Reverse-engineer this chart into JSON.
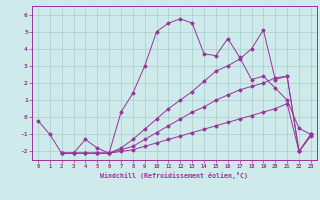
{
  "xlabel": "Windchill (Refroidissement éolien,°C)",
  "xlim": [
    -0.5,
    23.5
  ],
  "ylim": [
    -2.5,
    6.5
  ],
  "xticks": [
    0,
    1,
    2,
    3,
    4,
    5,
    6,
    7,
    8,
    9,
    10,
    11,
    12,
    13,
    14,
    15,
    16,
    17,
    18,
    19,
    20,
    21,
    22,
    23
  ],
  "yticks": [
    -2,
    -1,
    0,
    1,
    2,
    3,
    4,
    5,
    6
  ],
  "background_color": "#ceeaea",
  "line_color": "#993399",
  "grid_color": "#aacccc",
  "lines": [
    {
      "x": [
        0,
        1,
        2,
        3,
        4,
        5,
        6,
        7,
        8,
        9,
        10,
        11,
        12,
        13,
        14,
        15,
        16,
        17,
        18,
        19,
        20,
        21,
        22,
        23
      ],
      "y": [
        -0.2,
        -1.0,
        -2.1,
        -2.1,
        -1.3,
        -1.8,
        -2.1,
        0.3,
        1.4,
        3.0,
        5.0,
        5.5,
        5.75,
        5.5,
        3.7,
        3.6,
        4.6,
        3.5,
        2.2,
        2.4,
        1.7,
        1.0,
        -0.65,
        -1.0
      ]
    },
    {
      "x": [
        2,
        3,
        4,
        5,
        6,
        7,
        8,
        9,
        10,
        11,
        12,
        13,
        14,
        15,
        16,
        17,
        18,
        19,
        20,
        21,
        22,
        23
      ],
      "y": [
        -2.1,
        -2.1,
        -2.1,
        -2.1,
        -2.1,
        -2.0,
        -1.9,
        -1.7,
        -1.5,
        -1.3,
        -1.1,
        -0.9,
        -0.7,
        -0.5,
        -0.3,
        -0.1,
        0.1,
        0.3,
        0.5,
        0.8,
        -2.0,
        -1.1
      ]
    },
    {
      "x": [
        2,
        3,
        4,
        5,
        6,
        7,
        8,
        9,
        10,
        11,
        12,
        13,
        14,
        15,
        16,
        17,
        18,
        19,
        20,
        21,
        22,
        23
      ],
      "y": [
        -2.1,
        -2.1,
        -2.1,
        -2.1,
        -2.1,
        -1.9,
        -1.7,
        -1.3,
        -0.9,
        -0.5,
        -0.1,
        0.3,
        0.6,
        1.0,
        1.3,
        1.6,
        1.8,
        2.0,
        2.3,
        2.4,
        -2.0,
        -1.0
      ]
    },
    {
      "x": [
        2,
        3,
        4,
        5,
        6,
        7,
        8,
        9,
        10,
        11,
        12,
        13,
        14,
        15,
        16,
        17,
        18,
        19,
        20,
        21,
        22,
        23
      ],
      "y": [
        -2.1,
        -2.1,
        -2.1,
        -2.1,
        -2.1,
        -1.8,
        -1.3,
        -0.7,
        -0.1,
        0.5,
        1.0,
        1.5,
        2.1,
        2.7,
        3.0,
        3.4,
        4.0,
        5.1,
        2.2,
        2.4,
        -2.0,
        -1.0
      ]
    }
  ]
}
